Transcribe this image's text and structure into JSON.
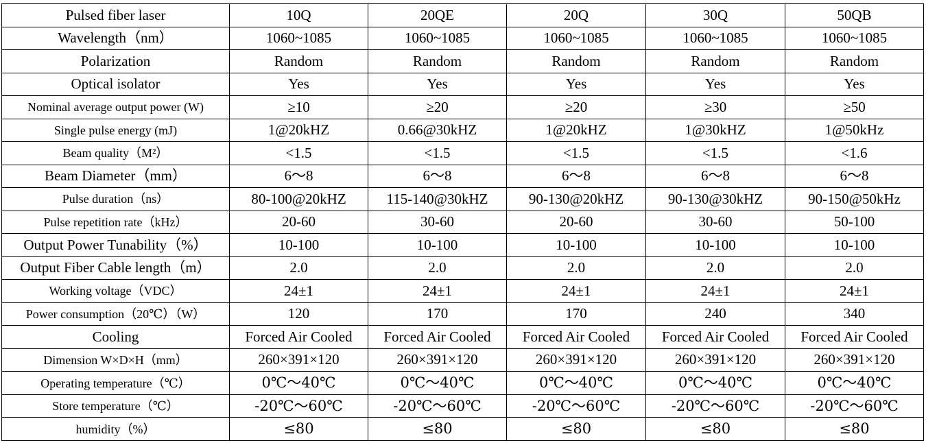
{
  "table": {
    "header": {
      "label": "Pulsed fiber laser",
      "models": [
        "10Q",
        "20QE",
        "20Q",
        "30Q",
        "50QB"
      ]
    },
    "rows": [
      {
        "label": "Wavelength（nm）",
        "values": [
          "1060~1085",
          "1060~1085",
          "1060~1085",
          "1060~1085",
          "1060~1085"
        ]
      },
      {
        "label": "Polarization",
        "values": [
          "Random",
          "Random",
          "Random",
          "Random",
          "Random"
        ]
      },
      {
        "label": "Optical isolator",
        "values": [
          "Yes",
          "Yes",
          "Yes",
          "Yes",
          "Yes"
        ]
      },
      {
        "label": "Nominal average output power (W)",
        "values": [
          "≥10",
          "≥20",
          "≥20",
          "≥30",
          "≥50"
        ]
      },
      {
        "label": "Single pulse energy (mJ)",
        "values": [
          "1@20kHZ",
          "0.66@30kHZ",
          "1@20kHZ",
          "1@30kHZ",
          "1@50kHz"
        ]
      },
      {
        "label": "Beam quality（M²）",
        "values": [
          "<1.5",
          "<1.5",
          "<1.5",
          "<1.5",
          "<1.6"
        ]
      },
      {
        "label": "Beam Diameter（mm）",
        "values": [
          "6～8",
          "6～8",
          "6～8",
          "6～8",
          "6～8"
        ]
      },
      {
        "label": "Pulse duration（ns）",
        "values": [
          "80-100@20kHZ",
          "115-140@30kHZ",
          "90-130@20kHZ",
          "90-130@30kHZ",
          "90-150@50kHz"
        ]
      },
      {
        "label": "Pulse repetition rate（kHz）",
        "values": [
          "20-60",
          "30-60",
          "20-60",
          "30-60",
          "50-100"
        ]
      },
      {
        "label": "Output Power Tunability（%）",
        "values": [
          "10-100",
          "10-100",
          "10-100",
          "10-100",
          "10-100"
        ]
      },
      {
        "label": "Output Fiber Cable length（m）",
        "values": [
          "2.0",
          "2.0",
          "2.0",
          "2.0",
          "2.0"
        ]
      },
      {
        "label": "Working voltage（VDC）",
        "values": [
          "24±1",
          "24±1",
          "24±1",
          "24±1",
          "24±1"
        ]
      },
      {
        "label": "Power consumption（20℃）（W）",
        "values": [
          "120",
          "170",
          "170",
          "240",
          "340"
        ]
      },
      {
        "label": "Cooling",
        "values": [
          "Forced Air Cooled",
          "Forced Air Cooled",
          "Forced Air Cooled",
          "Forced Air Cooled",
          "Forced Air Cooled"
        ]
      },
      {
        "label": "Dimension W×D×H（mm）",
        "values": [
          "260×391×120",
          "260×391×120",
          "260×391×120",
          "260×391×120",
          "260×391×120"
        ]
      },
      {
        "label": "Operating temperature（℃）",
        "values": [
          "0℃～40℃",
          "0℃～40℃",
          "0℃～40℃",
          "0℃～40℃",
          "0℃～40℃"
        ]
      },
      {
        "label": "Store temperature（℃）",
        "values": [
          "-20℃～60℃",
          "-20℃～60℃",
          "-20℃～60℃",
          "-20℃～60℃",
          "-20℃～60℃"
        ]
      },
      {
        "label": "humidity（%）",
        "values": [
          "≤80",
          "≤80",
          "≤80",
          "≤80",
          "≤80"
        ]
      }
    ]
  }
}
